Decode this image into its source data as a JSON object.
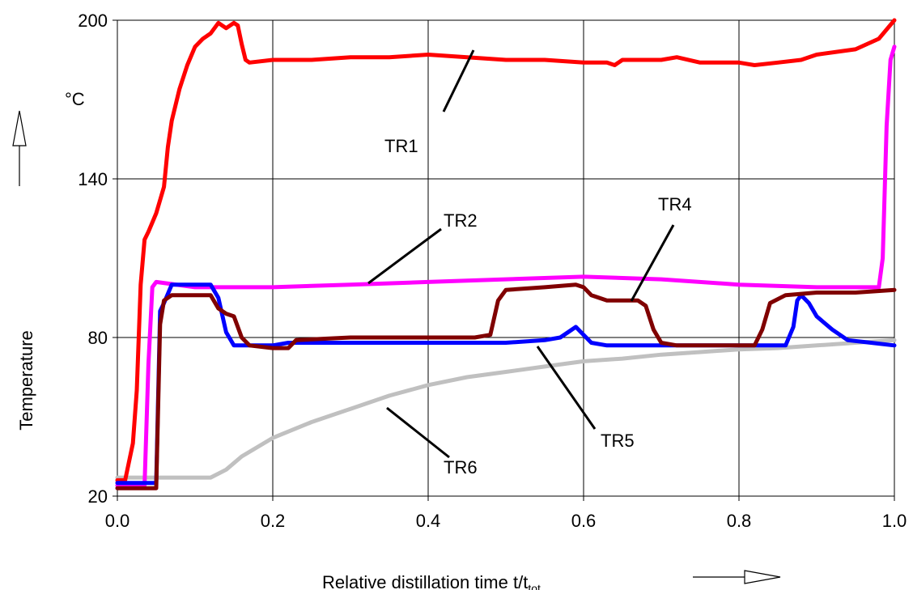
{
  "chart_data": {
    "type": "line",
    "title": "",
    "xlabel": "Relative distillation time t/t",
    "xlabel_sub": "tot",
    "ylabel": "Temperature",
    "yunit": "°C",
    "xlim": [
      0.0,
      1.0
    ],
    "ylim": [
      20,
      200
    ],
    "xticks": [
      "0.0",
      "0.2",
      "0.4",
      "0.6",
      "0.8",
      "1.0"
    ],
    "yticks": [
      "20",
      "80",
      "140",
      "200"
    ],
    "grid": true,
    "legend": "none (series labelled inline with leader lines)",
    "series": [
      {
        "name": "TR1",
        "color": "#ff0000",
        "points": [
          [
            0.0,
            26
          ],
          [
            0.01,
            26
          ],
          [
            0.02,
            40
          ],
          [
            0.025,
            60
          ],
          [
            0.03,
            100
          ],
          [
            0.035,
            117
          ],
          [
            0.04,
            120
          ],
          [
            0.05,
            127
          ],
          [
            0.06,
            137
          ],
          [
            0.065,
            152
          ],
          [
            0.07,
            162
          ],
          [
            0.08,
            174
          ],
          [
            0.09,
            183
          ],
          [
            0.1,
            190
          ],
          [
            0.11,
            193
          ],
          [
            0.12,
            195
          ],
          [
            0.13,
            199
          ],
          [
            0.14,
            197
          ],
          [
            0.15,
            199
          ],
          [
            0.155,
            198
          ],
          [
            0.16,
            191
          ],
          [
            0.165,
            185
          ],
          [
            0.17,
            184
          ],
          [
            0.2,
            185
          ],
          [
            0.25,
            185
          ],
          [
            0.3,
            186
          ],
          [
            0.35,
            186
          ],
          [
            0.4,
            187
          ],
          [
            0.45,
            186
          ],
          [
            0.5,
            185
          ],
          [
            0.55,
            185
          ],
          [
            0.6,
            184
          ],
          [
            0.63,
            184
          ],
          [
            0.64,
            183
          ],
          [
            0.65,
            185
          ],
          [
            0.7,
            185
          ],
          [
            0.72,
            186
          ],
          [
            0.75,
            184
          ],
          [
            0.8,
            184
          ],
          [
            0.82,
            183
          ],
          [
            0.85,
            184
          ],
          [
            0.88,
            185
          ],
          [
            0.9,
            187
          ],
          [
            0.95,
            189
          ],
          [
            0.98,
            193
          ],
          [
            1.0,
            200
          ]
        ]
      },
      {
        "name": "TR2",
        "color": "#ff00ff",
        "points": [
          [
            0.0,
            24
          ],
          [
            0.03,
            24
          ],
          [
            0.035,
            24
          ],
          [
            0.04,
            70
          ],
          [
            0.045,
            99
          ],
          [
            0.05,
            101
          ],
          [
            0.1,
            99
          ],
          [
            0.2,
            99
          ],
          [
            0.3,
            100
          ],
          [
            0.4,
            101
          ],
          [
            0.5,
            102
          ],
          [
            0.6,
            103
          ],
          [
            0.7,
            102
          ],
          [
            0.8,
            100
          ],
          [
            0.9,
            99
          ],
          [
            0.98,
            99
          ],
          [
            0.985,
            110
          ],
          [
            0.99,
            160
          ],
          [
            0.995,
            185
          ],
          [
            1.0,
            190
          ]
        ]
      },
      {
        "name": "TR4",
        "color": "#800000",
        "points": [
          [
            0.0,
            23
          ],
          [
            0.04,
            23
          ],
          [
            0.05,
            23
          ],
          [
            0.055,
            85
          ],
          [
            0.06,
            94
          ],
          [
            0.07,
            96
          ],
          [
            0.12,
            96
          ],
          [
            0.13,
            91
          ],
          [
            0.14,
            89
          ],
          [
            0.15,
            88
          ],
          [
            0.16,
            80
          ],
          [
            0.17,
            77
          ],
          [
            0.2,
            76
          ],
          [
            0.22,
            76
          ],
          [
            0.23,
            79
          ],
          [
            0.3,
            80
          ],
          [
            0.4,
            80
          ],
          [
            0.46,
            80
          ],
          [
            0.48,
            81
          ],
          [
            0.49,
            94
          ],
          [
            0.5,
            98
          ],
          [
            0.55,
            99
          ],
          [
            0.59,
            100
          ],
          [
            0.6,
            99
          ],
          [
            0.61,
            96
          ],
          [
            0.63,
            94
          ],
          [
            0.65,
            94
          ],
          [
            0.67,
            94
          ],
          [
            0.68,
            92
          ],
          [
            0.69,
            83
          ],
          [
            0.7,
            78
          ],
          [
            0.72,
            77
          ],
          [
            0.8,
            77
          ],
          [
            0.82,
            77
          ],
          [
            0.83,
            83
          ],
          [
            0.84,
            93
          ],
          [
            0.86,
            96
          ],
          [
            0.9,
            97
          ],
          [
            0.95,
            97
          ],
          [
            1.0,
            98
          ]
        ]
      },
      {
        "name": "TR5",
        "color": "#0000ff",
        "points": [
          [
            0.0,
            25
          ],
          [
            0.04,
            25
          ],
          [
            0.05,
            25
          ],
          [
            0.055,
            90
          ],
          [
            0.06,
            93
          ],
          [
            0.07,
            100
          ],
          [
            0.12,
            100
          ],
          [
            0.13,
            95
          ],
          [
            0.14,
            82
          ],
          [
            0.15,
            77
          ],
          [
            0.2,
            77
          ],
          [
            0.22,
            78
          ],
          [
            0.3,
            78
          ],
          [
            0.5,
            78
          ],
          [
            0.55,
            79
          ],
          [
            0.57,
            80
          ],
          [
            0.58,
            82
          ],
          [
            0.59,
            84
          ],
          [
            0.6,
            81
          ],
          [
            0.61,
            78
          ],
          [
            0.63,
            77
          ],
          [
            0.7,
            77
          ],
          [
            0.8,
            77
          ],
          [
            0.86,
            77
          ],
          [
            0.87,
            84
          ],
          [
            0.875,
            94
          ],
          [
            0.88,
            96
          ],
          [
            0.89,
            93
          ],
          [
            0.9,
            88
          ],
          [
            0.92,
            83
          ],
          [
            0.94,
            79
          ],
          [
            0.97,
            78
          ],
          [
            1.0,
            77
          ]
        ]
      },
      {
        "name": "TR6",
        "color": "#c0c0c0",
        "points": [
          [
            0.0,
            27
          ],
          [
            0.05,
            27
          ],
          [
            0.12,
            27
          ],
          [
            0.14,
            30
          ],
          [
            0.16,
            35
          ],
          [
            0.2,
            42
          ],
          [
            0.25,
            48
          ],
          [
            0.3,
            53
          ],
          [
            0.35,
            58
          ],
          [
            0.4,
            62
          ],
          [
            0.45,
            65
          ],
          [
            0.5,
            67
          ],
          [
            0.55,
            69
          ],
          [
            0.6,
            71
          ],
          [
            0.65,
            72
          ],
          [
            0.7,
            73.5
          ],
          [
            0.75,
            74.5
          ],
          [
            0.8,
            75.5
          ],
          [
            0.85,
            76
          ],
          [
            0.9,
            77
          ],
          [
            0.95,
            78
          ],
          [
            1.0,
            79
          ]
        ]
      }
    ],
    "annotations": [
      {
        "text": "TR1",
        "series": "TR1"
      },
      {
        "text": "TR2",
        "series": "TR2"
      },
      {
        "text": "TR4",
        "series": "TR4"
      },
      {
        "text": "TR5",
        "series": "TR5"
      },
      {
        "text": "TR6",
        "series": "TR6"
      }
    ]
  }
}
